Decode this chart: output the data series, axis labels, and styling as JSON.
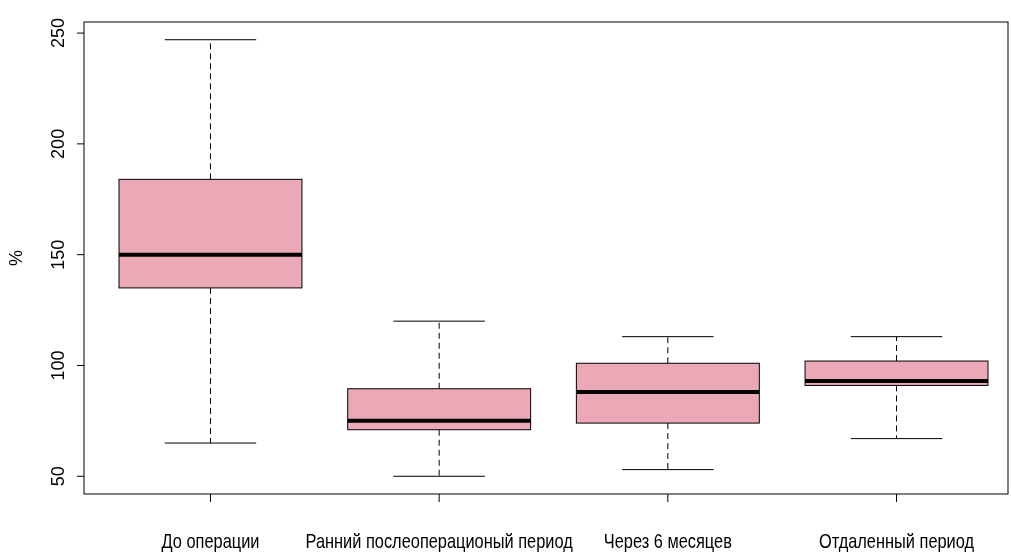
{
  "chart_data": {
    "type": "box",
    "ylabel": "%",
    "categories": [
      "До операции",
      "Ранний послеоперационый период",
      "Через 6 месяцев",
      "Отдаленный период"
    ],
    "color": "#eba9b7",
    "boxes": [
      {
        "low": 65,
        "q1": 135,
        "median": 150,
        "q3": 184,
        "high": 247
      },
      {
        "low": 50,
        "q1": 71,
        "median": 75,
        "q3": 89.5,
        "high": 120
      },
      {
        "low": 53,
        "q1": 74,
        "median": 88,
        "q3": 101,
        "high": 113
      },
      {
        "low": 67,
        "q1": 91,
        "median": 93,
        "q3": 102,
        "high": 113
      }
    ],
    "ylim": [
      42,
      255
    ],
    "yticks": [
      50,
      100,
      150,
      200,
      250
    ]
  }
}
